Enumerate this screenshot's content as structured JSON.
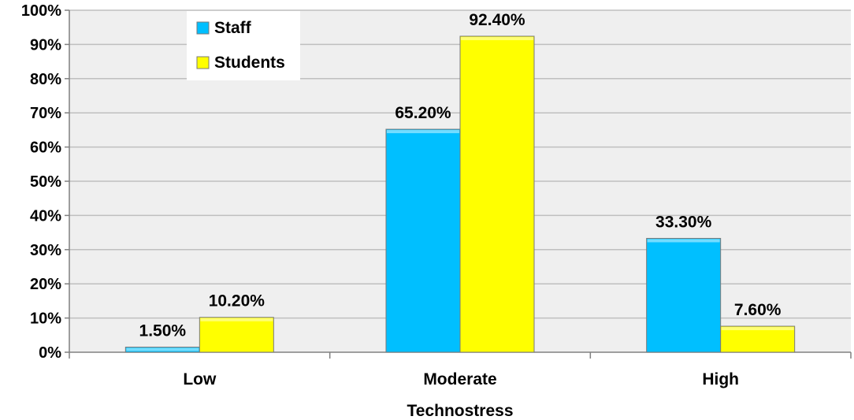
{
  "chart_data": {
    "type": "bar",
    "title": "",
    "xlabel": "Technostress",
    "ylabel": "",
    "categories": [
      "Low",
      "Moderate",
      "High"
    ],
    "ylim": [
      0,
      100
    ],
    "yticks": [
      "0%",
      "10%",
      "20%",
      "30%",
      "40%",
      "50%",
      "60%",
      "70%",
      "80%",
      "90%",
      "100%"
    ],
    "grid": true,
    "legend_position": "top-left",
    "series": [
      {
        "name": "Staff",
        "values": [
          1.5,
          65.2,
          33.3
        ],
        "labels": [
          "1.50%",
          "65.20%",
          "33.30%"
        ],
        "color": "#00BFFF"
      },
      {
        "name": "Students",
        "values": [
          10.2,
          92.4,
          7.6
        ],
        "labels": [
          "10.20%",
          "92.40%",
          "7.60%"
        ],
        "color": "#FFFF00"
      }
    ],
    "plot_background": "#EFEFEF",
    "grid_color": "#BFBFBF"
  }
}
